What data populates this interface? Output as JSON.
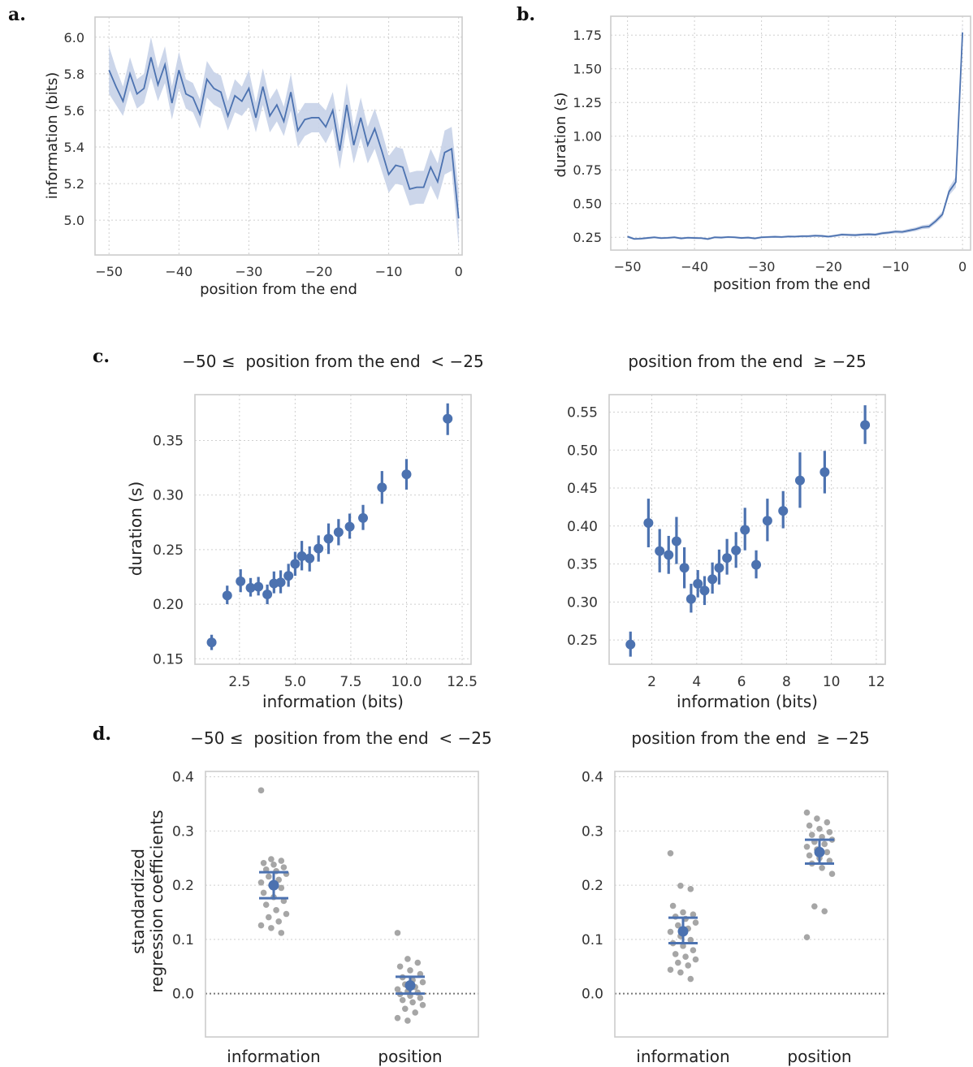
{
  "panel_labels": {
    "a": "a.",
    "b": "b.",
    "c": "c.",
    "d": "d."
  },
  "colors": {
    "line": "#4c72b0",
    "band": "#c7d2e8",
    "points": "#a6a6a6",
    "grid": "#cfcfcf",
    "frame": "#cccccc"
  },
  "chart_data": [
    {
      "id": "a",
      "type": "line",
      "xlabel": "position from the end",
      "ylabel": "information (bits)",
      "xlim": [
        -52,
        0.5
      ],
      "ylim": [
        4.81,
        6.11
      ],
      "xticks": [
        -50,
        -40,
        -30,
        -20,
        -10,
        0
      ],
      "xtick_labels": [
        "−50",
        "−40",
        "−30",
        "−20",
        "−10",
        "0"
      ],
      "yticks": [
        5.0,
        5.2,
        5.4,
        5.6,
        5.8,
        6.0
      ],
      "ytick_labels": [
        "5.0",
        "5.2",
        "5.4",
        "5.6",
        "5.8",
        "6.0"
      ],
      "grid": true,
      "x": [
        -50,
        -49,
        -48,
        -47,
        -46,
        -45,
        -44,
        -43,
        -42,
        -41,
        -40,
        -39,
        -38,
        -37,
        -36,
        -35,
        -34,
        -33,
        -32,
        -31,
        -30,
        -29,
        -28,
        -27,
        -26,
        -25,
        -24,
        -23,
        -22,
        -21,
        -20,
        -19,
        -18,
        -17,
        -16,
        -15,
        -14,
        -13,
        -12,
        -11,
        -10,
        -9,
        -8,
        -7,
        -6,
        -5,
        -4,
        -3,
        -2,
        -1,
        0
      ],
      "y": [
        5.82,
        5.73,
        5.65,
        5.8,
        5.69,
        5.72,
        5.89,
        5.74,
        5.85,
        5.64,
        5.82,
        5.69,
        5.67,
        5.58,
        5.77,
        5.72,
        5.7,
        5.57,
        5.68,
        5.65,
        5.72,
        5.56,
        5.73,
        5.57,
        5.63,
        5.54,
        5.7,
        5.49,
        5.55,
        5.56,
        5.56,
        5.51,
        5.6,
        5.38,
        5.63,
        5.41,
        5.56,
        5.41,
        5.5,
        5.38,
        5.25,
        5.3,
        5.29,
        5.17,
        5.18,
        5.18,
        5.29,
        5.21,
        5.37,
        5.39,
        5.01
      ],
      "ci_halfwidth": [
        0.13,
        0.1,
        0.08,
        0.09,
        0.08,
        0.08,
        0.11,
        0.09,
        0.1,
        0.09,
        0.1,
        0.08,
        0.08,
        0.08,
        0.1,
        0.09,
        0.09,
        0.08,
        0.09,
        0.08,
        0.1,
        0.08,
        0.1,
        0.09,
        0.09,
        0.08,
        0.1,
        0.09,
        0.09,
        0.08,
        0.08,
        0.09,
        0.1,
        0.1,
        0.12,
        0.1,
        0.11,
        0.1,
        0.11,
        0.11,
        0.1,
        0.1,
        0.1,
        0.09,
        0.09,
        0.09,
        0.1,
        0.1,
        0.12,
        0.12,
        0.15
      ]
    },
    {
      "id": "b",
      "type": "line",
      "xlabel": "position from the end",
      "ylabel": "duration (s)",
      "xlim": [
        -52.5,
        1.2
      ],
      "ylim": [
        0.155,
        1.89
      ],
      "xticks": [
        -50,
        -40,
        -30,
        -20,
        -10,
        0
      ],
      "xtick_labels": [
        "−50",
        "−40",
        "−30",
        "−20",
        "−10",
        "0"
      ],
      "yticks": [
        0.25,
        0.5,
        0.75,
        1.0,
        1.25,
        1.5,
        1.75
      ],
      "ytick_labels": [
        "0.25",
        "0.50",
        "0.75",
        "1.00",
        "1.25",
        "1.50",
        "1.75"
      ],
      "grid": true,
      "x": [
        -50,
        -49,
        -48,
        -47,
        -46,
        -45,
        -44,
        -43,
        -42,
        -41,
        -40,
        -39,
        -38,
        -37,
        -36,
        -35,
        -34,
        -33,
        -32,
        -31,
        -30,
        -29,
        -28,
        -27,
        -26,
        -25,
        -24,
        -23,
        -22,
        -21,
        -20,
        -19,
        -18,
        -17,
        -16,
        -15,
        -14,
        -13,
        -12,
        -11,
        -10,
        -9,
        -8,
        -7,
        -6,
        -5,
        -4,
        -3,
        -2,
        -1,
        0
      ],
      "y": [
        0.255,
        0.238,
        0.24,
        0.245,
        0.25,
        0.244,
        0.246,
        0.25,
        0.242,
        0.247,
        0.245,
        0.244,
        0.237,
        0.25,
        0.248,
        0.252,
        0.25,
        0.245,
        0.248,
        0.242,
        0.25,
        0.252,
        0.254,
        0.252,
        0.256,
        0.255,
        0.258,
        0.258,
        0.262,
        0.26,
        0.255,
        0.262,
        0.27,
        0.268,
        0.266,
        0.27,
        0.272,
        0.27,
        0.28,
        0.285,
        0.292,
        0.29,
        0.3,
        0.31,
        0.325,
        0.33,
        0.37,
        0.42,
        0.59,
        0.66,
        1.77
      ],
      "ci_halfwidth": [
        0.01,
        0.008,
        0.008,
        0.008,
        0.008,
        0.008,
        0.008,
        0.008,
        0.008,
        0.008,
        0.008,
        0.008,
        0.008,
        0.008,
        0.008,
        0.008,
        0.008,
        0.008,
        0.008,
        0.008,
        0.008,
        0.008,
        0.008,
        0.008,
        0.008,
        0.008,
        0.009,
        0.009,
        0.009,
        0.009,
        0.009,
        0.009,
        0.01,
        0.01,
        0.01,
        0.01,
        0.01,
        0.01,
        0.011,
        0.011,
        0.012,
        0.012,
        0.013,
        0.014,
        0.015,
        0.016,
        0.018,
        0.022,
        0.03,
        0.04,
        0.08
      ]
    },
    {
      "id": "c-left",
      "type": "scatter",
      "title": "−50 ≤  position from the end  < −25",
      "xlabel": "information (bits)",
      "ylabel": "duration (s)",
      "xlim": [
        0.5,
        12.9
      ],
      "ylim": [
        0.145,
        0.392
      ],
      "xticks": [
        2.5,
        5.0,
        7.5,
        10.0,
        12.5
      ],
      "xtick_labels": [
        "2.5",
        "5.0",
        "7.5",
        "10.0",
        "12.5"
      ],
      "yticks": [
        0.15,
        0.2,
        0.25,
        0.3,
        0.35
      ],
      "ytick_labels": [
        "0.15",
        "0.20",
        "0.25",
        "0.30",
        "0.35"
      ],
      "grid": true,
      "points": [
        {
          "x": 1.25,
          "y": 0.165,
          "lo": 0.158,
          "hi": 0.172
        },
        {
          "x": 1.95,
          "y": 0.208,
          "lo": 0.2,
          "hi": 0.217
        },
        {
          "x": 2.55,
          "y": 0.221,
          "lo": 0.211,
          "hi": 0.232
        },
        {
          "x": 3.0,
          "y": 0.215,
          "lo": 0.207,
          "hi": 0.224
        },
        {
          "x": 3.35,
          "y": 0.216,
          "lo": 0.208,
          "hi": 0.225
        },
        {
          "x": 3.75,
          "y": 0.209,
          "lo": 0.2,
          "hi": 0.218
        },
        {
          "x": 4.05,
          "y": 0.219,
          "lo": 0.21,
          "hi": 0.23
        },
        {
          "x": 4.35,
          "y": 0.22,
          "lo": 0.21,
          "hi": 0.231
        },
        {
          "x": 4.7,
          "y": 0.226,
          "lo": 0.216,
          "hi": 0.237
        },
        {
          "x": 5.0,
          "y": 0.237,
          "lo": 0.226,
          "hi": 0.248
        },
        {
          "x": 5.3,
          "y": 0.244,
          "lo": 0.231,
          "hi": 0.258
        },
        {
          "x": 5.65,
          "y": 0.242,
          "lo": 0.23,
          "hi": 0.253
        },
        {
          "x": 6.05,
          "y": 0.251,
          "lo": 0.239,
          "hi": 0.263
        },
        {
          "x": 6.5,
          "y": 0.26,
          "lo": 0.246,
          "hi": 0.274
        },
        {
          "x": 6.95,
          "y": 0.266,
          "lo": 0.254,
          "hi": 0.278
        },
        {
          "x": 7.45,
          "y": 0.271,
          "lo": 0.26,
          "hi": 0.283
        },
        {
          "x": 8.05,
          "y": 0.279,
          "lo": 0.268,
          "hi": 0.291
        },
        {
          "x": 8.9,
          "y": 0.307,
          "lo": 0.292,
          "hi": 0.322
        },
        {
          "x": 10.0,
          "y": 0.319,
          "lo": 0.305,
          "hi": 0.333
        },
        {
          "x": 11.85,
          "y": 0.37,
          "lo": 0.355,
          "hi": 0.384
        }
      ]
    },
    {
      "id": "c-right",
      "type": "scatter",
      "title": "position from the end  ≥ −25",
      "xlabel": "information (bits)",
      "ylabel": "",
      "xlim": [
        0.1,
        12.4
      ],
      "ylim": [
        0.218,
        0.573
      ],
      "xticks": [
        2,
        4,
        6,
        8,
        10,
        12
      ],
      "xtick_labels": [
        "2",
        "4",
        "6",
        "8",
        "10",
        "12"
      ],
      "yticks": [
        0.25,
        0.3,
        0.35,
        0.4,
        0.45,
        0.5,
        0.55
      ],
      "ytick_labels": [
        "0.25",
        "0.30",
        "0.35",
        "0.40",
        "0.45",
        "0.50",
        "0.55"
      ],
      "grid": true,
      "points": [
        {
          "x": 1.05,
          "y": 0.244,
          "lo": 0.228,
          "hi": 0.261
        },
        {
          "x": 1.85,
          "y": 0.404,
          "lo": 0.372,
          "hi": 0.436
        },
        {
          "x": 2.35,
          "y": 0.367,
          "lo": 0.339,
          "hi": 0.396
        },
        {
          "x": 2.75,
          "y": 0.362,
          "lo": 0.337,
          "hi": 0.387
        },
        {
          "x": 3.1,
          "y": 0.38,
          "lo": 0.35,
          "hi": 0.412
        },
        {
          "x": 3.45,
          "y": 0.345,
          "lo": 0.318,
          "hi": 0.372
        },
        {
          "x": 3.75,
          "y": 0.304,
          "lo": 0.286,
          "hi": 0.324
        },
        {
          "x": 4.05,
          "y": 0.324,
          "lo": 0.306,
          "hi": 0.342
        },
        {
          "x": 4.35,
          "y": 0.315,
          "lo": 0.296,
          "hi": 0.334
        },
        {
          "x": 4.7,
          "y": 0.33,
          "lo": 0.311,
          "hi": 0.352
        },
        {
          "x": 5.0,
          "y": 0.345,
          "lo": 0.323,
          "hi": 0.369
        },
        {
          "x": 5.35,
          "y": 0.358,
          "lo": 0.336,
          "hi": 0.383
        },
        {
          "x": 5.75,
          "y": 0.368,
          "lo": 0.345,
          "hi": 0.392
        },
        {
          "x": 6.15,
          "y": 0.395,
          "lo": 0.368,
          "hi": 0.424
        },
        {
          "x": 6.65,
          "y": 0.349,
          "lo": 0.331,
          "hi": 0.368
        },
        {
          "x": 7.15,
          "y": 0.407,
          "lo": 0.38,
          "hi": 0.436
        },
        {
          "x": 7.85,
          "y": 0.42,
          "lo": 0.397,
          "hi": 0.446
        },
        {
          "x": 8.6,
          "y": 0.46,
          "lo": 0.424,
          "hi": 0.497
        },
        {
          "x": 9.7,
          "y": 0.471,
          "lo": 0.443,
          "hi": 0.499
        },
        {
          "x": 11.5,
          "y": 0.533,
          "lo": 0.508,
          "hi": 0.559
        }
      ]
    },
    {
      "id": "d-left",
      "type": "scatter",
      "title": "−50 ≤  position from the end  < −25",
      "xlabel": "",
      "ylabel": "standardized\nregression coefficients",
      "categories": [
        "information",
        "position"
      ],
      "ylim": [
        -0.08,
        0.41
      ],
      "yticks": [
        0.0,
        0.1,
        0.2,
        0.3,
        0.4
      ],
      "ytick_labels": [
        "0.0",
        "0.1",
        "0.2",
        "0.3",
        "0.4"
      ],
      "grid": true,
      "reference_line": 0.0,
      "series": [
        {
          "category": "information",
          "mean": 0.2,
          "ci": [
            0.176,
            0.224
          ],
          "points": [
            0.375,
            0.248,
            0.245,
            0.241,
            0.238,
            0.233,
            0.229,
            0.226,
            0.221,
            0.216,
            0.21,
            0.205,
            0.2,
            0.195,
            0.186,
            0.178,
            0.171,
            0.164,
            0.154,
            0.147,
            0.141,
            0.133,
            0.126,
            0.121,
            0.112
          ]
        },
        {
          "category": "position",
          "mean": 0.015,
          "ci": [
            0.0,
            0.031
          ],
          "points": [
            0.112,
            0.064,
            0.057,
            0.05,
            0.043,
            0.036,
            0.03,
            0.025,
            0.021,
            0.017,
            0.012,
            0.008,
            0.004,
            0.002,
            -0.001,
            -0.004,
            -0.008,
            -0.012,
            -0.016,
            -0.021,
            -0.028,
            -0.035,
            -0.045,
            -0.05
          ]
        }
      ]
    },
    {
      "id": "d-right",
      "type": "scatter",
      "title": "position from the end  ≥ −25",
      "xlabel": "",
      "ylabel": "",
      "categories": [
        "information",
        "position"
      ],
      "ylim": [
        -0.08,
        0.41
      ],
      "yticks": [
        0.0,
        0.1,
        0.2,
        0.3,
        0.4
      ],
      "ytick_labels": [
        "0.0",
        "0.1",
        "0.2",
        "0.3",
        "0.4"
      ],
      "grid": true,
      "reference_line": 0.0,
      "series": [
        {
          "category": "information",
          "mean": 0.115,
          "ci": [
            0.093,
            0.14
          ],
          "points": [
            0.259,
            0.199,
            0.193,
            0.162,
            0.15,
            0.146,
            0.142,
            0.138,
            0.131,
            0.126,
            0.12,
            0.114,
            0.106,
            0.099,
            0.093,
            0.088,
            0.08,
            0.073,
            0.068,
            0.063,
            0.057,
            0.052,
            0.044,
            0.039,
            0.027
          ]
        },
        {
          "category": "position",
          "mean": 0.261,
          "ci": [
            0.24,
            0.284
          ],
          "points": [
            0.334,
            0.323,
            0.316,
            0.31,
            0.304,
            0.298,
            0.293,
            0.289,
            0.284,
            0.28,
            0.276,
            0.271,
            0.266,
            0.261,
            0.255,
            0.25,
            0.245,
            0.24,
            0.232,
            0.221,
            0.161,
            0.152,
            0.104
          ]
        }
      ]
    }
  ]
}
